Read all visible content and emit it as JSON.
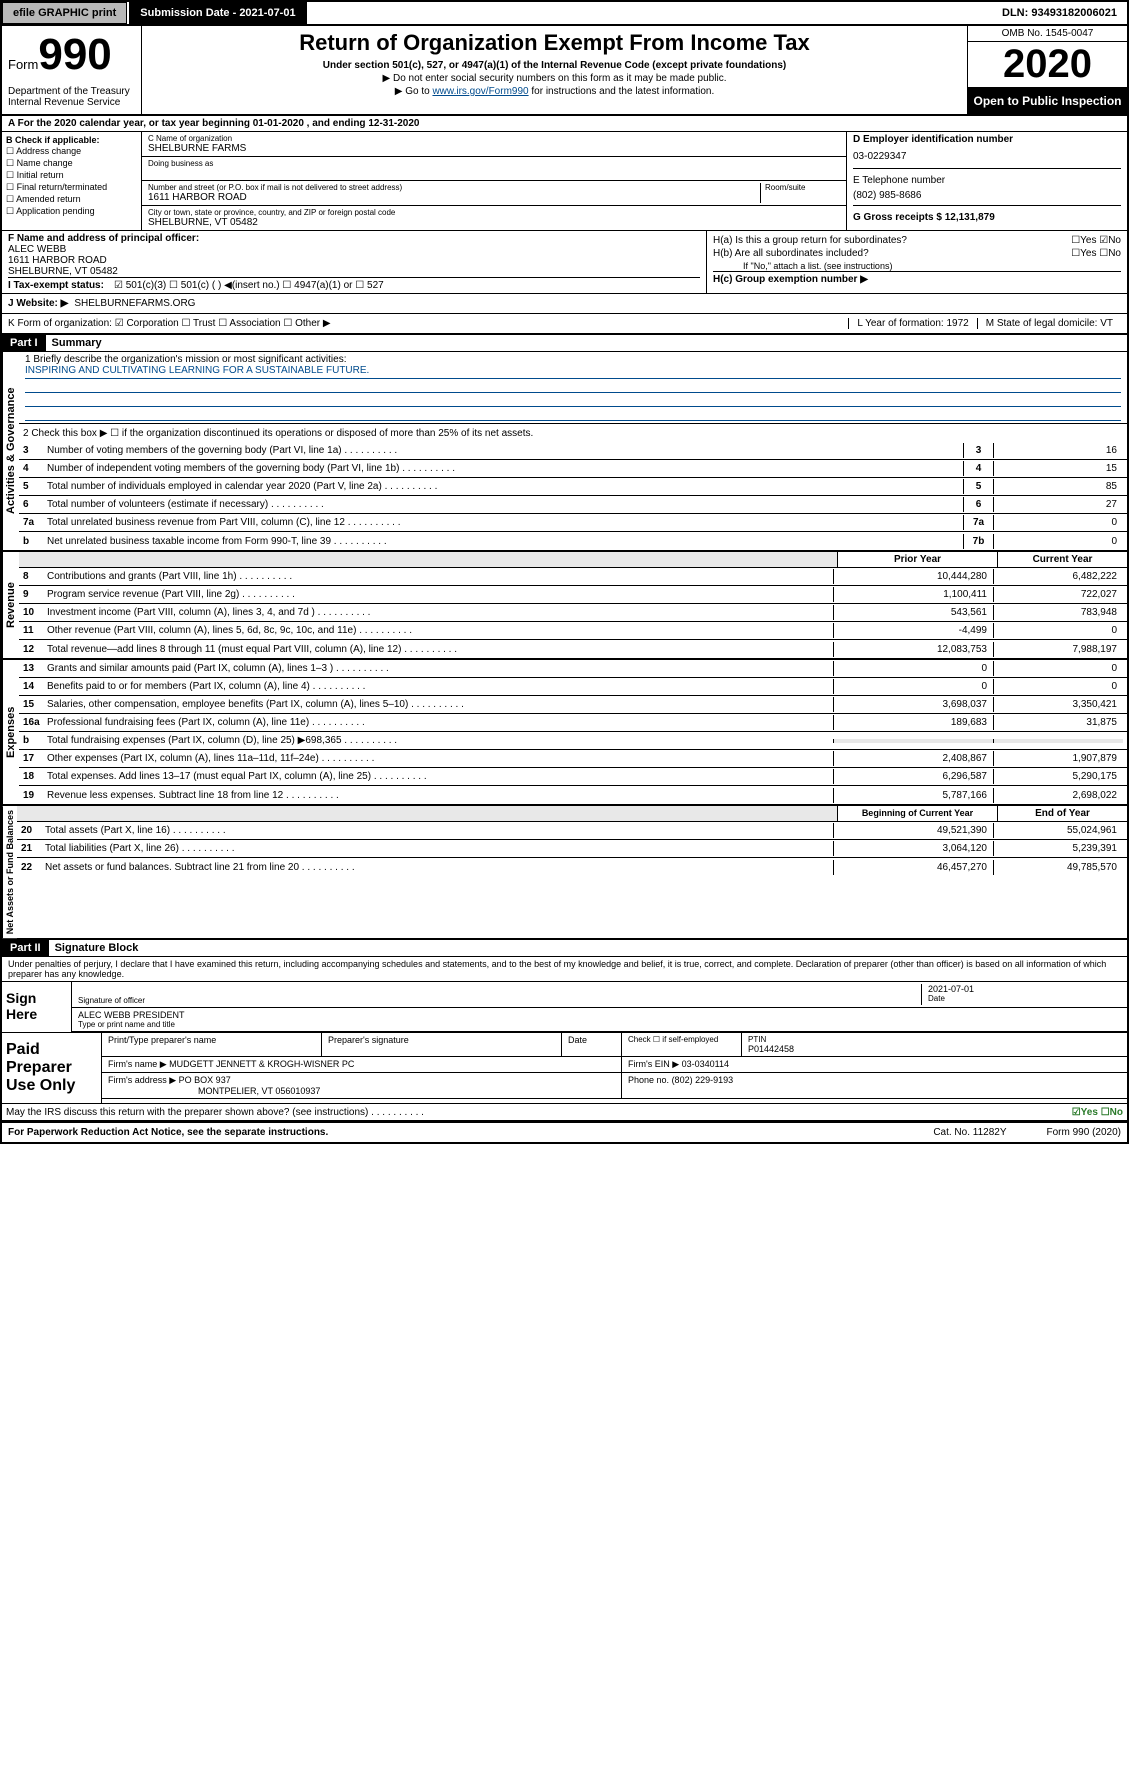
{
  "topbar": {
    "efile": "efile GRAPHIC print",
    "submission_label": "Submission Date - 2021-07-01",
    "dln": "DLN: 93493182006021"
  },
  "header": {
    "form_word": "Form",
    "form_num": "990",
    "dept": "Department of the Treasury\nInternal Revenue Service",
    "title": "Return of Organization Exempt From Income Tax",
    "sub1": "Under section 501(c), 527, or 4947(a)(1) of the Internal Revenue Code (except private foundations)",
    "sub2": "▶ Do not enter social security numbers on this form as it may be made public.",
    "sub3_prefix": "▶ Go to ",
    "sub3_link": "www.irs.gov/Form990",
    "sub3_suffix": " for instructions and the latest information.",
    "omb": "OMB No. 1545-0047",
    "year": "2020",
    "open_public": "Open to Public Inspection"
  },
  "period": "A For the 2020 calendar year, or tax year beginning 01-01-2020    , and ending 12-31-2020",
  "colB": {
    "hdr": "B Check if applicable:",
    "opts": [
      "☐ Address change",
      "☐ Name change",
      "☐ Initial return",
      "☐ Final return/terminated",
      "☐ Amended return",
      "☐ Application pending"
    ]
  },
  "name": {
    "label": "C Name of organization",
    "val": "SHELBURNE FARMS",
    "dba_label": "Doing business as",
    "street_label": "Number and street (or P.O. box if mail is not delivered to street address)",
    "room_label": "Room/suite",
    "street": "1611 HARBOR ROAD",
    "city_label": "City or town, state or province, country, and ZIP or foreign postal code",
    "city": "SHELBURNE, VT  05482"
  },
  "right_info": {
    "d_label": "D Employer identification number",
    "ein": "03-0229347",
    "e_label": "E Telephone number",
    "phone": "(802) 985-8686",
    "g_label": "G Gross receipts $ 12,131,879"
  },
  "officer": {
    "f_label": "F  Name and address of principal officer:",
    "name": "ALEC WEBB",
    "addr1": "1611 HARBOR ROAD",
    "addr2": "SHELBURNE, VT  05482"
  },
  "h_block": {
    "ha": "H(a)  Is this a group return for subordinates?",
    "ha_ans": "☐Yes ☑No",
    "hb": "H(b) Are all subordinates included?",
    "hb_ans": "☐Yes ☐No",
    "hb_note": "If \"No,\" attach a list. (see instructions)",
    "hc": "H(c)  Group exemption number ▶"
  },
  "status": {
    "i_label": "I    Tax-exempt status:",
    "opts": "☑ 501(c)(3)   ☐ 501(c) (  ) ◀(insert no.)    ☐ 4947(a)(1) or  ☐ 527"
  },
  "website": {
    "j_label": "J   Website: ▶",
    "val": "SHELBURNEFARMS.ORG"
  },
  "k_row": {
    "label": "K Form of organization:  ☑ Corporation ☐ Trust ☐ Association ☐ Other ▶",
    "l": "L Year of formation: 1972",
    "m": "M State of legal domicile: VT"
  },
  "part1": {
    "hdr": "Part I",
    "title": "Summary"
  },
  "gov": {
    "tab": "Activities & Governance",
    "l1": "1  Briefly describe the organization's mission or most significant activities:",
    "mission": "INSPIRING AND CULTIVATING LEARNING FOR A SUSTAINABLE FUTURE.",
    "l2": "2   Check this box ▶ ☐  if the organization discontinued its operations or disposed of more than 25% of its net assets.",
    "lines": [
      {
        "n": "3",
        "desc": "Number of voting members of the governing body (Part VI, line 1a)",
        "box": "3",
        "val": "16"
      },
      {
        "n": "4",
        "desc": "Number of independent voting members of the governing body (Part VI, line 1b)",
        "box": "4",
        "val": "15"
      },
      {
        "n": "5",
        "desc": "Total number of individuals employed in calendar year 2020 (Part V, line 2a)",
        "box": "5",
        "val": "85"
      },
      {
        "n": "6",
        "desc": "Total number of volunteers (estimate if necessary)",
        "box": "6",
        "val": "27"
      },
      {
        "n": "7a",
        "desc": "Total unrelated business revenue from Part VIII, column (C), line 12",
        "box": "7a",
        "val": "0"
      },
      {
        "n": "b",
        "desc": "Net unrelated business taxable income from Form 990-T, line 39",
        "box": "7b",
        "val": "0"
      }
    ]
  },
  "rev": {
    "tab": "Revenue",
    "hdr_prior": "Prior Year",
    "hdr_curr": "Current Year",
    "lines": [
      {
        "n": "8",
        "desc": "Contributions and grants (Part VIII, line 1h)",
        "prior": "10,444,280",
        "curr": "6,482,222"
      },
      {
        "n": "9",
        "desc": "Program service revenue (Part VIII, line 2g)",
        "prior": "1,100,411",
        "curr": "722,027"
      },
      {
        "n": "10",
        "desc": "Investment income (Part VIII, column (A), lines 3, 4, and 7d )",
        "prior": "543,561",
        "curr": "783,948"
      },
      {
        "n": "11",
        "desc": "Other revenue (Part VIII, column (A), lines 5, 6d, 8c, 9c, 10c, and 11e)",
        "prior": "-4,499",
        "curr": "0"
      },
      {
        "n": "12",
        "desc": "Total revenue—add lines 8 through 11 (must equal Part VIII, column (A), line 12)",
        "prior": "12,083,753",
        "curr": "7,988,197"
      }
    ]
  },
  "exp": {
    "tab": "Expenses",
    "lines": [
      {
        "n": "13",
        "desc": "Grants and similar amounts paid (Part IX, column (A), lines 1–3 )",
        "prior": "0",
        "curr": "0"
      },
      {
        "n": "14",
        "desc": "Benefits paid to or for members (Part IX, column (A), line 4)",
        "prior": "0",
        "curr": "0"
      },
      {
        "n": "15",
        "desc": "Salaries, other compensation, employee benefits (Part IX, column (A), lines 5–10)",
        "prior": "3,698,037",
        "curr": "3,350,421"
      },
      {
        "n": "16a",
        "desc": "Professional fundraising fees (Part IX, column (A), line 11e)",
        "prior": "189,683",
        "curr": "31,875"
      },
      {
        "n": "b",
        "desc": "Total fundraising expenses (Part IX, column (D), line 25) ▶698,365",
        "prior": "",
        "curr": "",
        "shade": true
      },
      {
        "n": "17",
        "desc": "Other expenses (Part IX, column (A), lines 11a–11d, 11f–24e)",
        "prior": "2,408,867",
        "curr": "1,907,879"
      },
      {
        "n": "18",
        "desc": "Total expenses. Add lines 13–17 (must equal Part IX, column (A), line 25)",
        "prior": "6,296,587",
        "curr": "5,290,175"
      },
      {
        "n": "19",
        "desc": "Revenue less expenses. Subtract line 18 from line 12",
        "prior": "5,787,166",
        "curr": "2,698,022"
      }
    ]
  },
  "net": {
    "tab": "Net Assets or Fund Balances",
    "hdr_begin": "Beginning of Current Year",
    "hdr_end": "End of Year",
    "lines": [
      {
        "n": "20",
        "desc": "Total assets (Part X, line 16)",
        "prior": "49,521,390",
        "curr": "55,024,961"
      },
      {
        "n": "21",
        "desc": "Total liabilities (Part X, line 26)",
        "prior": "3,064,120",
        "curr": "5,239,391"
      },
      {
        "n": "22",
        "desc": "Net assets or fund balances. Subtract line 21 from line 20",
        "prior": "46,457,270",
        "curr": "49,785,570"
      }
    ]
  },
  "part2": {
    "hdr": "Part II",
    "title": "Signature Block",
    "declare": "Under penalties of perjury, I declare that I have examined this return, including accompanying schedules and statements, and to the best of my knowledge and belief, it is true, correct, and complete. Declaration of preparer (other than officer) is based on all information of which preparer has any knowledge."
  },
  "sign": {
    "label": "Sign Here",
    "sig_officer": "Signature of officer",
    "date": "2021-07-01",
    "date_label": "Date",
    "name_title": "ALEC WEBB  PRESIDENT",
    "name_label": "Type or print name and title"
  },
  "prep": {
    "label": "Paid Preparer Use Only",
    "col1": "Print/Type preparer's name",
    "col2": "Preparer's signature",
    "col3": "Date",
    "col4_label": "Check ☐ if self-employed",
    "col5_label": "PTIN",
    "ptin": "P01442458",
    "firm_name_label": "Firm's name    ▶",
    "firm_name": "MUDGETT JENNETT & KROGH-WISNER PC",
    "firm_ein_label": "Firm's EIN ▶",
    "firm_ein": "03-0340114",
    "firm_addr_label": "Firm's address ▶",
    "firm_addr": "PO BOX 937",
    "firm_city": "MONTPELIER, VT  056010937",
    "phone_label": "Phone no.",
    "phone": "(802) 229-9193"
  },
  "discuss": {
    "q": "May the IRS discuss this return with the preparer shown above? (see instructions)",
    "ans": "☑Yes ☐No"
  },
  "footer": {
    "left": "For Paperwork Reduction Act Notice, see the separate instructions.",
    "mid": "Cat. No. 11282Y",
    "right": "Form 990 (2020)"
  }
}
